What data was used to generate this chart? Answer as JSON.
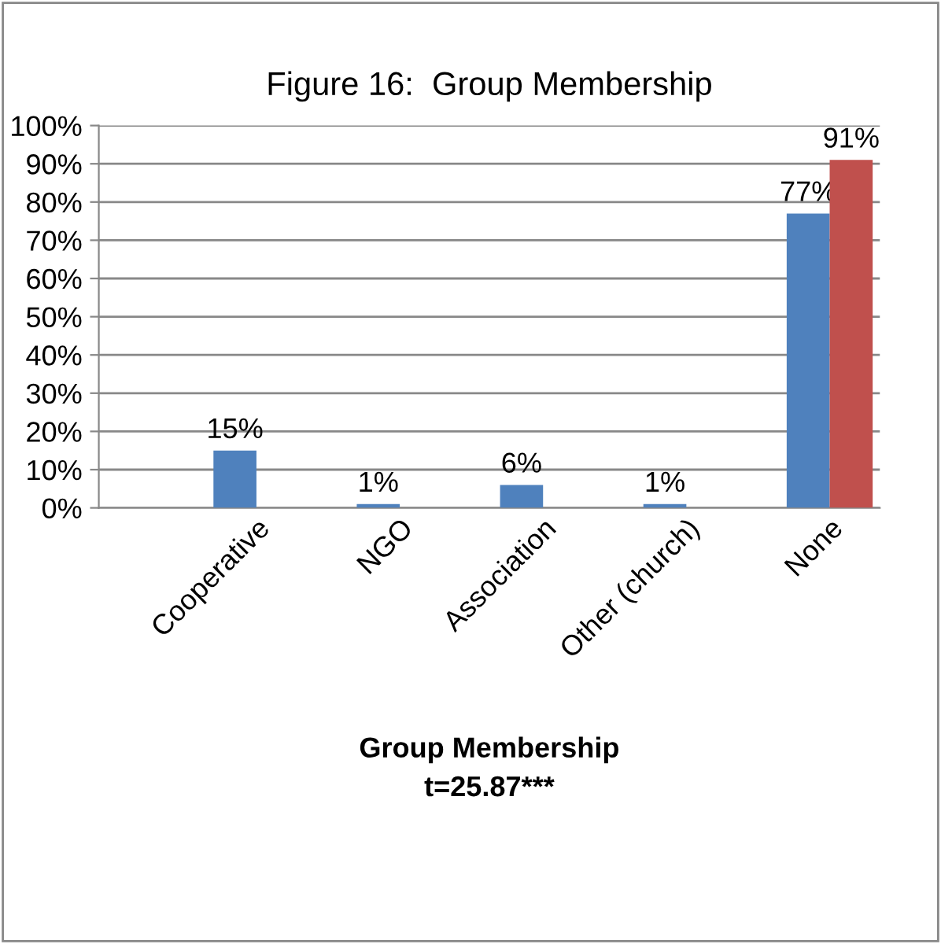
{
  "chart_data": {
    "type": "bar",
    "title": "Figure 16:  Group Membership",
    "xlabel": "Group Membership\nt=25.87***",
    "categories": [
      "Cooperative",
      "NGO",
      "Association",
      "Other (church)",
      "None"
    ],
    "series": [
      {
        "color": "#4f81bd",
        "values": [
          15,
          1,
          6,
          1,
          77
        ],
        "value_labels": [
          "15%",
          "1%",
          "6%",
          "1%",
          "77%"
        ]
      },
      {
        "color": "#c0504d",
        "values": [
          null,
          null,
          null,
          null,
          91
        ],
        "value_labels": [
          null,
          null,
          null,
          null,
          "91%"
        ]
      }
    ],
    "ylim": [
      0,
      100
    ],
    "yticks": [
      {
        "value": 0,
        "label": "0%"
      },
      {
        "value": 10,
        "label": "10%"
      },
      {
        "value": 20,
        "label": "20%"
      },
      {
        "value": 30,
        "label": "30%"
      },
      {
        "value": 40,
        "label": "40%"
      },
      {
        "value": 50,
        "label": "50%"
      },
      {
        "value": 60,
        "label": "60%"
      },
      {
        "value": 70,
        "label": "70%"
      },
      {
        "value": 80,
        "label": "80%"
      },
      {
        "value": 90,
        "label": "90%"
      },
      {
        "value": 100,
        "label": "100%"
      }
    ],
    "grid": "y",
    "legend": false
  }
}
